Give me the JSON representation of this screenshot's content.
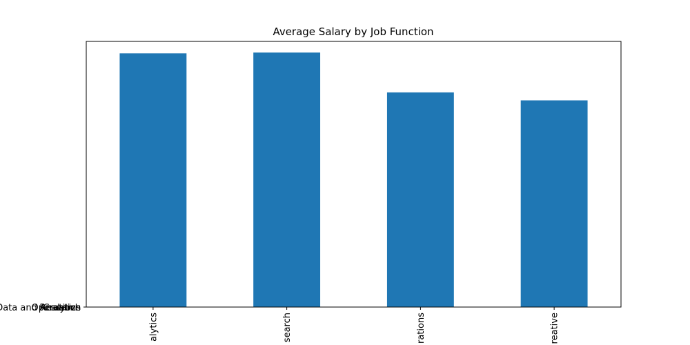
{
  "chart_data": {
    "type": "bar",
    "title": "Average Salary by Job Function",
    "xlabel": "",
    "ylabel": "",
    "categories": [
      "Data and Analytics",
      "Research",
      "Operations",
      "Creative"
    ],
    "visible_tick_text": [
      "alytics",
      "search",
      "rations",
      "reative"
    ],
    "y_tick_labels_overlapping": [
      "Data and Analytics",
      "Research",
      "Operations",
      "Creative"
    ],
    "values": [
      0.955,
      0.958,
      0.808,
      0.778
    ],
    "ylim": [
      0,
      1.0
    ],
    "bar_color": "#1f77b4",
    "grid": false,
    "legend": "none"
  }
}
